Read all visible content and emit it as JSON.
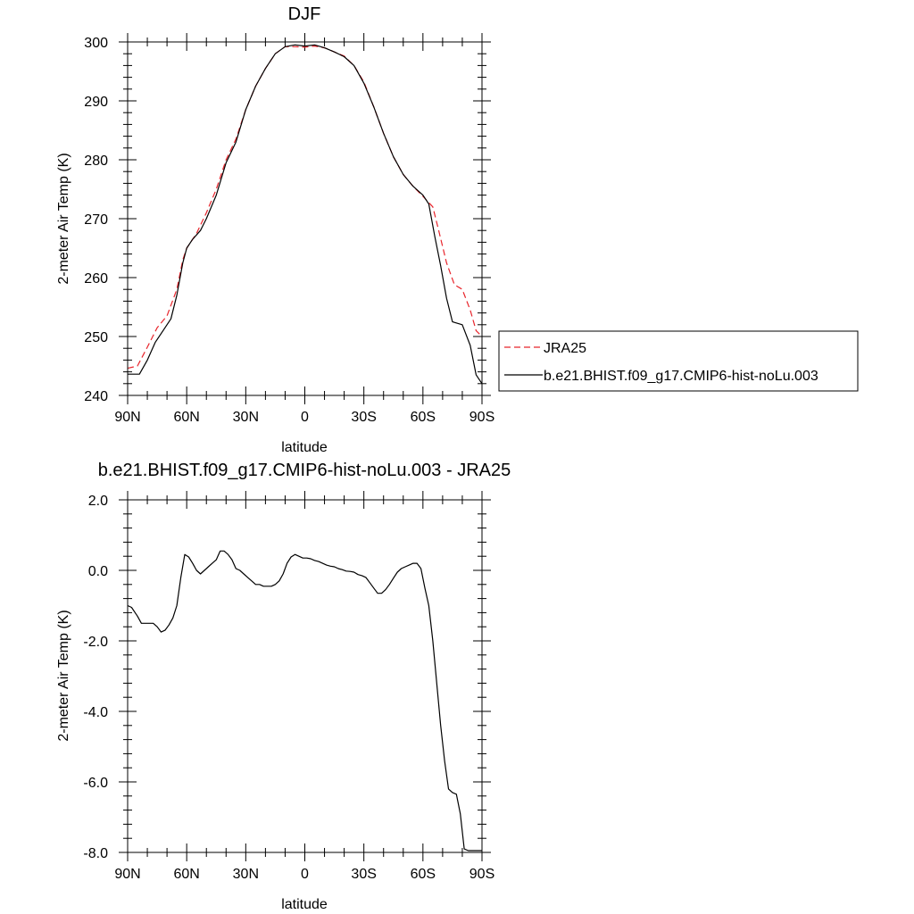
{
  "chart_data": [
    {
      "type": "line",
      "title": "DJF",
      "xlabel": "latitude",
      "ylabel": "2-meter Air Temp (K)",
      "xlim": [
        -90,
        90
      ],
      "ylim": [
        240,
        300
      ],
      "x_ticks": [
        -90,
        -60,
        -30,
        0,
        30,
        60,
        90
      ],
      "x_tick_labels": [
        "90N",
        "60N",
        "30N",
        "0",
        "30S",
        "60S",
        "90S"
      ],
      "y_ticks": [
        240,
        250,
        260,
        270,
        280,
        290,
        300
      ],
      "y_tick_labels": [
        "240",
        "250",
        "260",
        "270",
        "280",
        "290",
        "300"
      ],
      "legend": {
        "placement": "right",
        "entries": [
          "JRA25",
          "b.e21.BHIST.f09_g17.CMIP6-hist-noLu.003"
        ]
      },
      "series": [
        {
          "name": "JRA25",
          "color": "#e8242b",
          "dash": "dashed",
          "x": [
            -90,
            -85,
            -80,
            -75,
            -70,
            -65,
            -62,
            -60,
            -55,
            -50,
            -45,
            -40,
            -35,
            -30,
            -25,
            -20,
            -15,
            -10,
            -5,
            0,
            5,
            10,
            15,
            20,
            25,
            30,
            35,
            40,
            45,
            50,
            55,
            60,
            65,
            68,
            72,
            76,
            80,
            84,
            87,
            90
          ],
          "y": [
            244.6,
            245.0,
            248.2,
            251.5,
            253.5,
            258.0,
            263.0,
            265.0,
            267.5,
            271.0,
            275.0,
            280.0,
            283.5,
            288.5,
            292.5,
            295.5,
            298.0,
            299.2,
            299.2,
            299.1,
            299.3,
            299.0,
            298.3,
            297.6,
            296.0,
            293.2,
            289.0,
            284.5,
            280.5,
            277.5,
            275.5,
            273.8,
            272.0,
            268.0,
            262.5,
            258.8,
            258.0,
            254.5,
            251.0,
            250.0
          ]
        },
        {
          "name": "b.e21.BHIST.f09_g17.CMIP6-hist-noLu.003",
          "color": "#000000",
          "dash": "solid",
          "x": [
            -90,
            -84,
            -80,
            -76,
            -72,
            -68,
            -65,
            -62,
            -60,
            -57,
            -53,
            -50,
            -45,
            -40,
            -35,
            -30,
            -25,
            -20,
            -15,
            -10,
            -5,
            0,
            5,
            10,
            15,
            20,
            25,
            30,
            35,
            40,
            45,
            50,
            55,
            60,
            63,
            66,
            69,
            72,
            75,
            80,
            84,
            87,
            90
          ],
          "y": [
            243.6,
            243.6,
            246.0,
            249.0,
            251.0,
            253.0,
            257.0,
            262.5,
            265.0,
            266.5,
            268.0,
            270.0,
            274.0,
            279.5,
            283.0,
            288.5,
            292.5,
            295.5,
            298.0,
            299.2,
            299.5,
            299.3,
            299.5,
            299.0,
            298.3,
            297.5,
            296.0,
            293.0,
            289.0,
            284.5,
            280.5,
            277.5,
            275.5,
            274.0,
            272.5,
            267.0,
            262.0,
            256.5,
            252.5,
            252.0,
            248.5,
            243.5,
            242.0
          ]
        }
      ]
    },
    {
      "type": "line",
      "title": "b.e21.BHIST.f09_g17.CMIP6-hist-noLu.003 - JRA25",
      "xlabel": "latitude",
      "ylabel": "2-meter Air Temp (K)",
      "xlim": [
        -90,
        90
      ],
      "ylim": [
        -8,
        2
      ],
      "x_ticks": [
        -90,
        -60,
        -30,
        0,
        30,
        60,
        90
      ],
      "x_tick_labels": [
        "90N",
        "60N",
        "30N",
        "0",
        "30S",
        "60S",
        "90S"
      ],
      "y_ticks": [
        -8,
        -6,
        -4,
        -2,
        0,
        2
      ],
      "y_tick_labels": [
        "-8.0",
        "-6.0",
        "-4.0",
        "-2.0",
        "0.0",
        "2.0"
      ],
      "series": [
        {
          "color": "#000000",
          "dash": "solid",
          "x": [
            -90,
            -88,
            -85,
            -83,
            -80,
            -77,
            -75,
            -73,
            -71,
            -69,
            -67,
            -65,
            -63,
            -61,
            -59,
            -57,
            -55,
            -53,
            -51,
            -49,
            -47,
            -45,
            -43,
            -41,
            -39,
            -37,
            -35,
            -33,
            -31,
            -29,
            -27,
            -25,
            -23,
            -21,
            -19,
            -17,
            -15,
            -13,
            -11,
            -9,
            -7,
            -5,
            -3,
            -1,
            1,
            3,
            5,
            7,
            9,
            11,
            13,
            15,
            17,
            19,
            21,
            23,
            25,
            27,
            29,
            31,
            33,
            35,
            37,
            39,
            41,
            43,
            45,
            47,
            49,
            51,
            53,
            55,
            57,
            59,
            61,
            63,
            65,
            67,
            69,
            71,
            73,
            75,
            77,
            79,
            81,
            83,
            85,
            87,
            89,
            90
          ],
          "y": [
            -1.0,
            -1.05,
            -1.3,
            -1.5,
            -1.5,
            -1.5,
            -1.6,
            -1.75,
            -1.7,
            -1.55,
            -1.35,
            -1.0,
            -0.2,
            0.45,
            0.38,
            0.2,
            0.0,
            -0.1,
            0.0,
            0.1,
            0.2,
            0.3,
            0.55,
            0.55,
            0.45,
            0.3,
            0.05,
            0.0,
            -0.1,
            -0.2,
            -0.3,
            -0.4,
            -0.4,
            -0.45,
            -0.45,
            -0.45,
            -0.4,
            -0.3,
            -0.1,
            0.2,
            0.38,
            0.45,
            0.4,
            0.35,
            0.35,
            0.33,
            0.28,
            0.25,
            0.2,
            0.15,
            0.12,
            0.1,
            0.05,
            0.02,
            -0.02,
            -0.03,
            -0.05,
            -0.12,
            -0.15,
            -0.2,
            -0.35,
            -0.5,
            -0.65,
            -0.65,
            -0.55,
            -0.4,
            -0.22,
            -0.05,
            0.05,
            0.1,
            0.15,
            0.2,
            0.2,
            0.05,
            -0.5,
            -1.0,
            -2.0,
            -3.2,
            -4.4,
            -5.4,
            -6.2,
            -6.3,
            -6.35,
            -6.9,
            -7.9,
            -7.95,
            -7.95,
            -7.95,
            -7.95,
            -7.95
          ]
        }
      ]
    }
  ]
}
